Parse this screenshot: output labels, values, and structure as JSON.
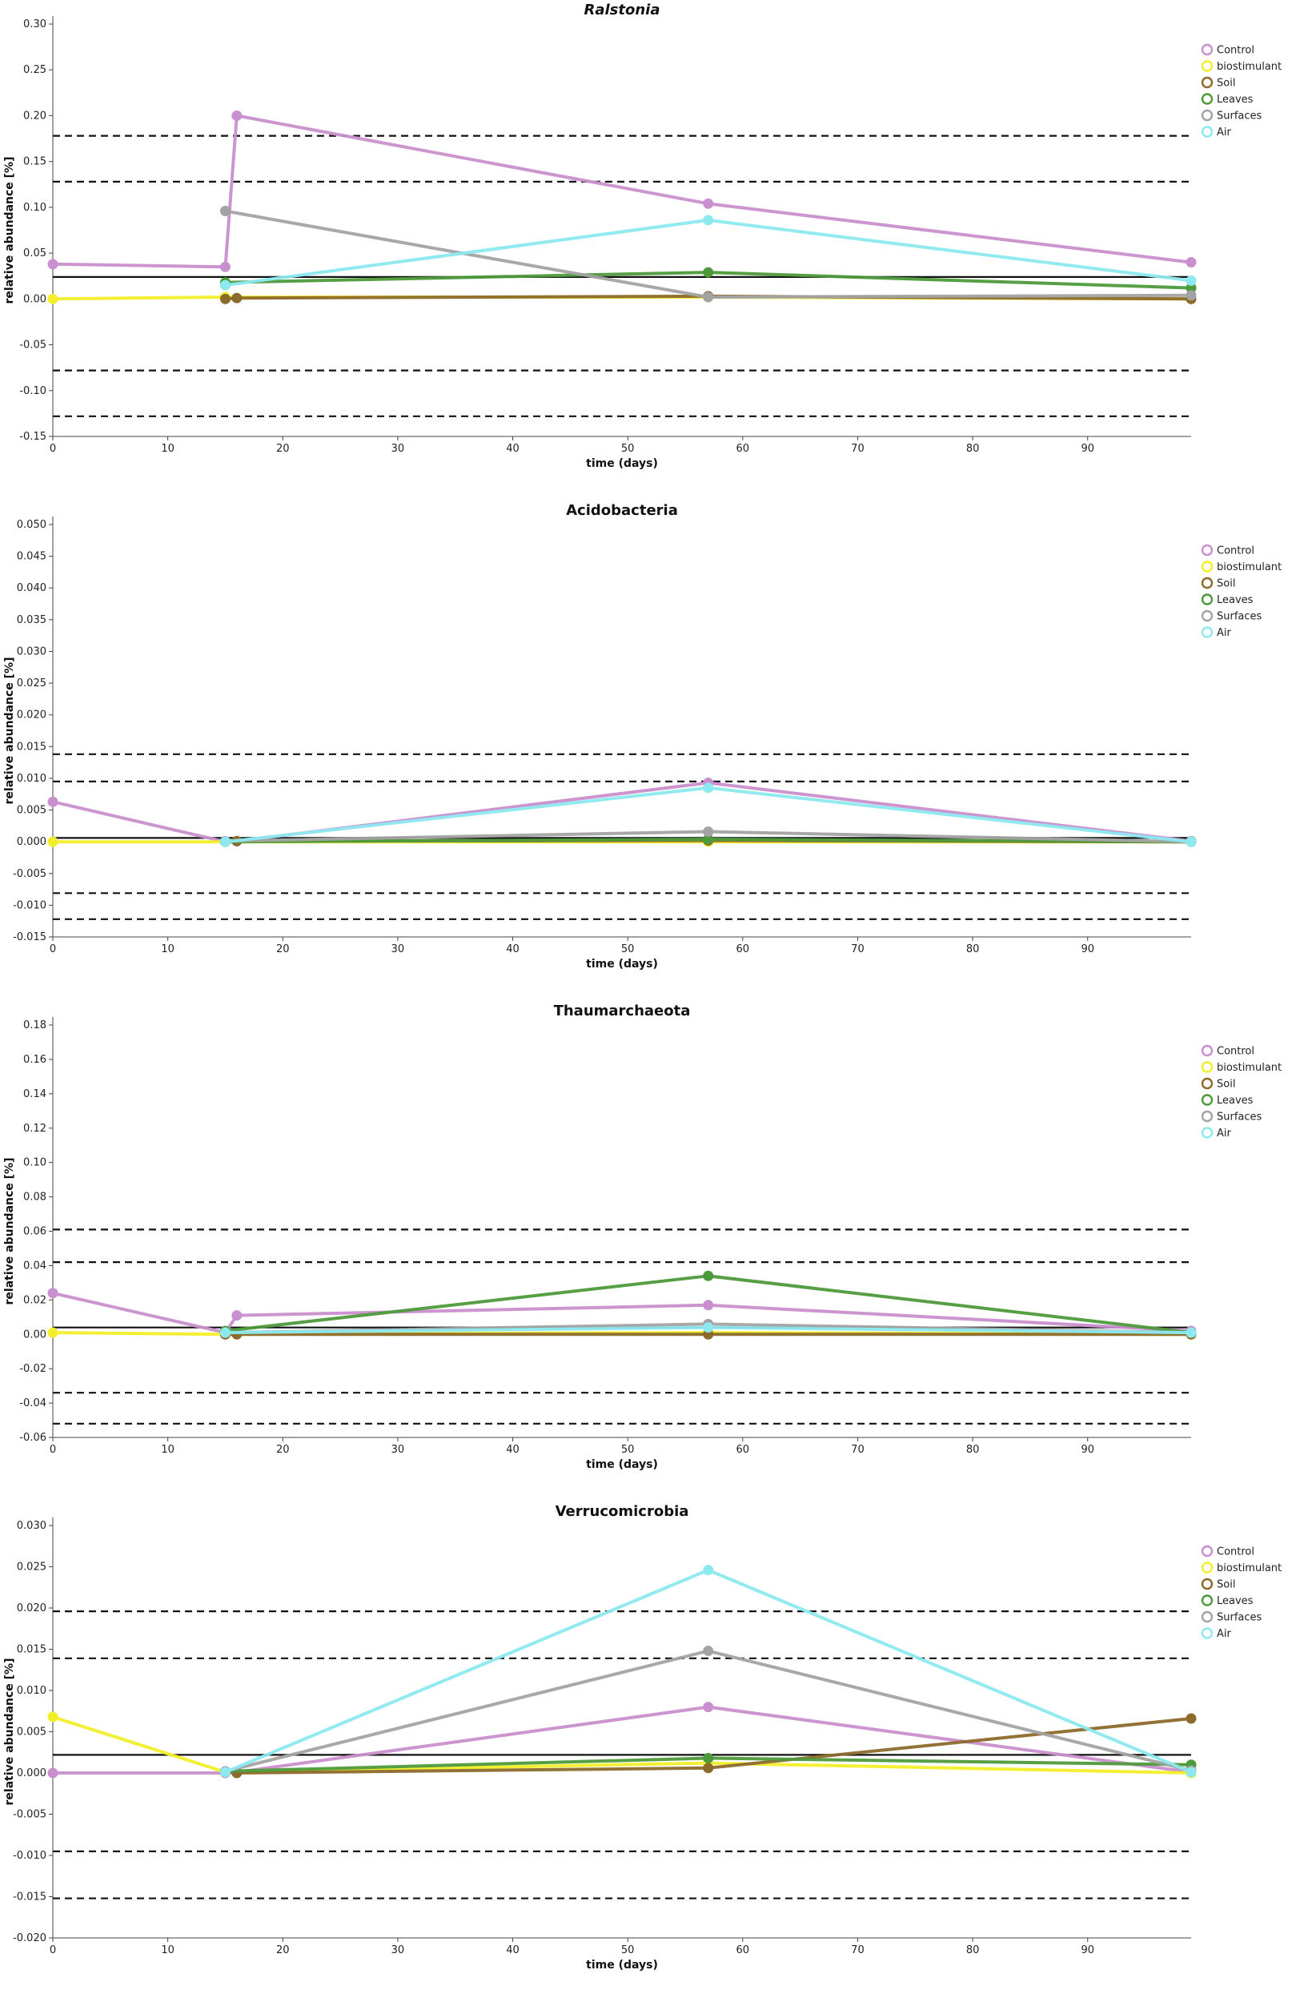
{
  "colors": {
    "Control": "#c98fce",
    "biostimulant": "#f2ee2a",
    "Soil": "#8c6a2c",
    "Leaves": "#4d9a3a",
    "Surfaces": "#a3a3a3",
    "Air": "#8ce9f0"
  },
  "chart_data": [
    {
      "type": "line",
      "title": "Ralstonia",
      "title_italic": true,
      "xlabel": "time (days)",
      "ylabel": "relative abundance [%]",
      "xlim": [
        0,
        99
      ],
      "ylim": [
        -0.15,
        0.3
      ],
      "xticks": [
        0,
        10,
        20,
        30,
        40,
        50,
        60,
        70,
        80,
        90
      ],
      "yticks": [
        "0.30",
        "0.25",
        "0.20",
        "0.15",
        "0.10",
        "0.05",
        "0.00",
        "-0.05",
        "-0.10",
        "-0.15"
      ],
      "legend": [
        "Control",
        "biostimulant",
        "Soil",
        "Leaves",
        "Surfaces",
        "Air"
      ],
      "mean_line": 0.024,
      "threshold_lines": [
        0.178,
        0.128,
        -0.078,
        -0.128
      ],
      "series": [
        {
          "name": "Control",
          "x": [
            0,
            15,
            16,
            57,
            99
          ],
          "y": [
            0.038,
            0.035,
            0.2,
            0.104,
            0.04
          ]
        },
        {
          "name": "biostimulant",
          "x": [
            0,
            15,
            57,
            99
          ],
          "y": [
            0.0,
            0.002,
            0.002,
            0.0
          ]
        },
        {
          "name": "Soil",
          "x": [
            15,
            16,
            57,
            99
          ],
          "y": [
            0.0,
            0.001,
            0.003,
            0.0
          ]
        },
        {
          "name": "Leaves",
          "x": [
            15,
            57,
            99
          ],
          "y": [
            0.018,
            0.029,
            0.012
          ]
        },
        {
          "name": "Surfaces",
          "x": [
            15,
            57,
            99
          ],
          "y": [
            0.096,
            0.002,
            0.004
          ]
        },
        {
          "name": "Air",
          "x": [
            15,
            57,
            99
          ],
          "y": [
            0.015,
            0.086,
            0.02
          ]
        }
      ]
    },
    {
      "type": "line",
      "title": "Acidobacteria",
      "title_italic": false,
      "xlabel": "time (days)",
      "ylabel": "relative abundance [%]",
      "xlim": [
        0,
        99
      ],
      "ylim": [
        -0.015,
        0.05
      ],
      "xticks": [
        0,
        10,
        20,
        30,
        40,
        50,
        60,
        70,
        80,
        90
      ],
      "yticks": [
        "0.050",
        "0.045",
        "0.040",
        "0.035",
        "0.030",
        "0.025",
        "0.020",
        "0.015",
        "0.010",
        "0.005",
        "0.000",
        "-0.005",
        "-0.010",
        "-0.015"
      ],
      "legend": [
        "Control",
        "biostimulant",
        "Soil",
        "Leaves",
        "Surfaces",
        "Air"
      ],
      "mean_line": 0.0006,
      "threshold_lines": [
        0.0138,
        0.0095,
        -0.0081,
        -0.0122
      ],
      "series": [
        {
          "name": "Control",
          "x": [
            0,
            15,
            16,
            57,
            99
          ],
          "y": [
            0.0063,
            0.0,
            0.0001,
            0.0093,
            0.0001
          ]
        },
        {
          "name": "biostimulant",
          "x": [
            0,
            15,
            57,
            99
          ],
          "y": [
            0.0,
            0.0,
            0.0,
            0.0
          ]
        },
        {
          "name": "Soil",
          "x": [
            15,
            16,
            57,
            99
          ],
          "y": [
            0.0,
            0.0001,
            0.0002,
            0.0
          ]
        },
        {
          "name": "Leaves",
          "x": [
            15,
            57,
            99
          ],
          "y": [
            0.0,
            0.0004,
            0.0
          ]
        },
        {
          "name": "Surfaces",
          "x": [
            15,
            57,
            99
          ],
          "y": [
            0.0001,
            0.0016,
            0.0
          ]
        },
        {
          "name": "Air",
          "x": [
            15,
            57,
            99
          ],
          "y": [
            0.0,
            0.0085,
            0.0
          ]
        }
      ]
    },
    {
      "type": "line",
      "title": "Thaumarchaeota",
      "title_italic": false,
      "xlabel": "time (days)",
      "ylabel": "relative abundance [%]",
      "xlim": [
        0,
        99
      ],
      "ylim": [
        -0.06,
        0.18
      ],
      "xticks": [
        0,
        10,
        20,
        30,
        40,
        50,
        60,
        70,
        80,
        90
      ],
      "yticks": [
        "0.18",
        "0.16",
        "0.14",
        "0.12",
        "0.10",
        "0.08",
        "0.06",
        "0.04",
        "0.02",
        "0.00",
        "-0.02",
        "-0.04",
        "-0.06"
      ],
      "legend": [
        "Control",
        "biostimulant",
        "Soil",
        "Leaves",
        "Surfaces",
        "Air"
      ],
      "mean_line": 0.004,
      "threshold_lines": [
        0.061,
        0.042,
        -0.034,
        -0.052
      ],
      "series": [
        {
          "name": "Control",
          "x": [
            0,
            15,
            16,
            57,
            99
          ],
          "y": [
            0.024,
            0.001,
            0.011,
            0.017,
            0.002
          ]
        },
        {
          "name": "biostimulant",
          "x": [
            0,
            15,
            57,
            99
          ],
          "y": [
            0.001,
            0.0,
            0.001,
            0.0
          ]
        },
        {
          "name": "Soil",
          "x": [
            15,
            16,
            57,
            99
          ],
          "y": [
            0.0,
            0.0,
            0.0,
            0.0
          ]
        },
        {
          "name": "Leaves",
          "x": [
            15,
            57,
            99
          ],
          "y": [
            0.002,
            0.034,
            0.001
          ]
        },
        {
          "name": "Surfaces",
          "x": [
            15,
            57,
            99
          ],
          "y": [
            0.001,
            0.006,
            0.001
          ]
        },
        {
          "name": "Air",
          "x": [
            15,
            57,
            99
          ],
          "y": [
            0.001,
            0.004,
            0.001
          ]
        }
      ]
    },
    {
      "type": "line",
      "title": "Verrucomicrobia",
      "title_italic": false,
      "xlabel": "time (days)",
      "ylabel": "relative abundance [%]",
      "xlim": [
        0,
        99
      ],
      "ylim": [
        -0.02,
        0.03
      ],
      "xticks": [
        0,
        10,
        20,
        30,
        40,
        50,
        60,
        70,
        80,
        90
      ],
      "yticks": [
        "0.030",
        "0.025",
        "0.020",
        "0.015",
        "0.010",
        "0.005",
        "0.000",
        "-0.005",
        "-0.010",
        "-0.015",
        "-0.020"
      ],
      "legend": [
        "Control",
        "biostimulant",
        "Soil",
        "Leaves",
        "Surfaces",
        "Air"
      ],
      "mean_line": 0.0022,
      "threshold_lines": [
        0.0196,
        0.0139,
        -0.0095,
        -0.0152
      ],
      "series": [
        {
          "name": "Control",
          "x": [
            0,
            15,
            16,
            57,
            99
          ],
          "y": [
            0.0,
            0.0,
            0.0001,
            0.008,
            0.0001
          ]
        },
        {
          "name": "biostimulant",
          "x": [
            0,
            15,
            57,
            99
          ],
          "y": [
            0.0068,
            0.0001,
            0.0012,
            0.0
          ]
        },
        {
          "name": "Soil",
          "x": [
            15,
            16,
            57,
            99
          ],
          "y": [
            0.0001,
            0.0,
            0.0006,
            0.0066
          ]
        },
        {
          "name": "Leaves",
          "x": [
            15,
            57,
            99
          ],
          "y": [
            0.0002,
            0.0018,
            0.001
          ]
        },
        {
          "name": "Surfaces",
          "x": [
            15,
            57,
            99
          ],
          "y": [
            0.0002,
            0.0148,
            0.0003
          ]
        },
        {
          "name": "Air",
          "x": [
            15,
            57,
            99
          ],
          "y": [
            0.0001,
            0.0246,
            0.0001
          ]
        }
      ]
    }
  ]
}
